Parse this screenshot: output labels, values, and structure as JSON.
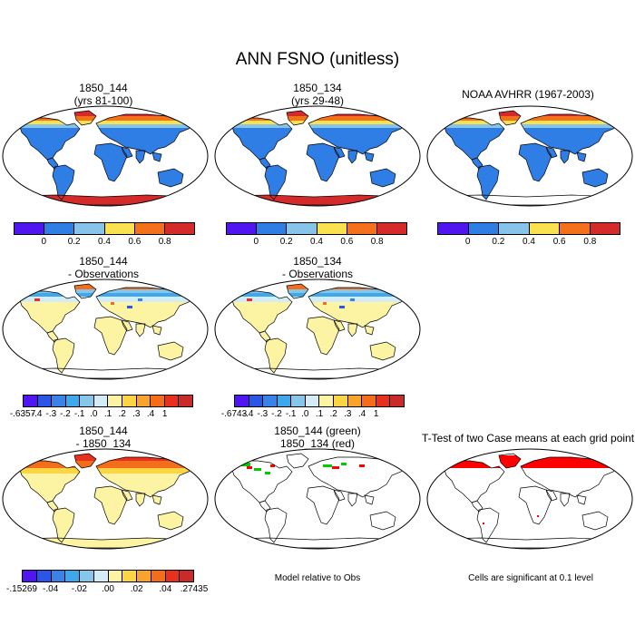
{
  "title": "ANN FSNO (unitless)",
  "colors": {
    "abs": [
      "#4f16f1",
      "#2f7ee6",
      "#86c4ea",
      "#f9e150",
      "#f4701b",
      "#d42a2a"
    ],
    "diff": [
      "#4f16f1",
      "#2a55e6",
      "#3b82e8",
      "#3fa8ea",
      "#85c6ea",
      "#d3ecf5",
      "#fdf4a3",
      "#fbd544",
      "#f8a32c",
      "#f46d1a",
      "#e8301e",
      "#c92a2a"
    ],
    "green": "#00cc00",
    "red": "#ff0000"
  },
  "panels": [
    {
      "title1": "1850_144",
      "title2": "(yrs 81-100)"
    },
    {
      "title1": "1850_134",
      "title2": "(yrs 29-48)"
    },
    {
      "title1": "NOAA AVHRR (1967-2003)",
      "title2": ""
    },
    {
      "title1": "1850_144",
      "title2": "- Observations"
    },
    {
      "title1": "1850_134",
      "title2": "- Observations"
    },
    {
      "title1": "1850_144",
      "title2": "- 1850_134"
    },
    {
      "title1": "1850_144 (green)",
      "title2": "1850_134 (red)"
    },
    {
      "title1": "T-Test of two Case means at each grid point",
      "title2": ""
    }
  ],
  "colorbars": {
    "abs_ticks": [
      "0",
      "0.2",
      "0.4",
      "0.6",
      "0.8"
    ],
    "diff1_ticks": [
      "-.6357",
      "-.4",
      "-.3",
      "-.2",
      "-.1",
      ".0",
      ".1",
      ".2",
      ".3",
      ".4",
      "1"
    ],
    "diff2_ticks": [
      "-.6743",
      "-.4",
      "-.3",
      "-.2",
      "-.1",
      ".0",
      ".1",
      ".2",
      ".3",
      ".4",
      "1"
    ],
    "diff3_ticks": [
      "-.15269",
      "-.04",
      "-.02",
      ".00",
      ".02",
      ".04",
      ".27435"
    ]
  },
  "notes": {
    "model_relative": "Model relative to Obs",
    "significance": "Cells are significant at 0.1 level"
  },
  "chart_data": {
    "type": "heatmap",
    "variable": "ANN FSNO",
    "units": "unitless",
    "abs_levels": [
      0,
      0.2,
      0.4,
      0.6,
      0.8
    ],
    "diff_levels": [
      -0.4,
      -0.3,
      -0.2,
      -0.1,
      0.0,
      0.1,
      0.2,
      0.3,
      0.4
    ],
    "case_diff_levels": [
      -0.04,
      -0.02,
      0.0,
      0.02,
      0.04
    ],
    "significance_level": 0.1
  }
}
